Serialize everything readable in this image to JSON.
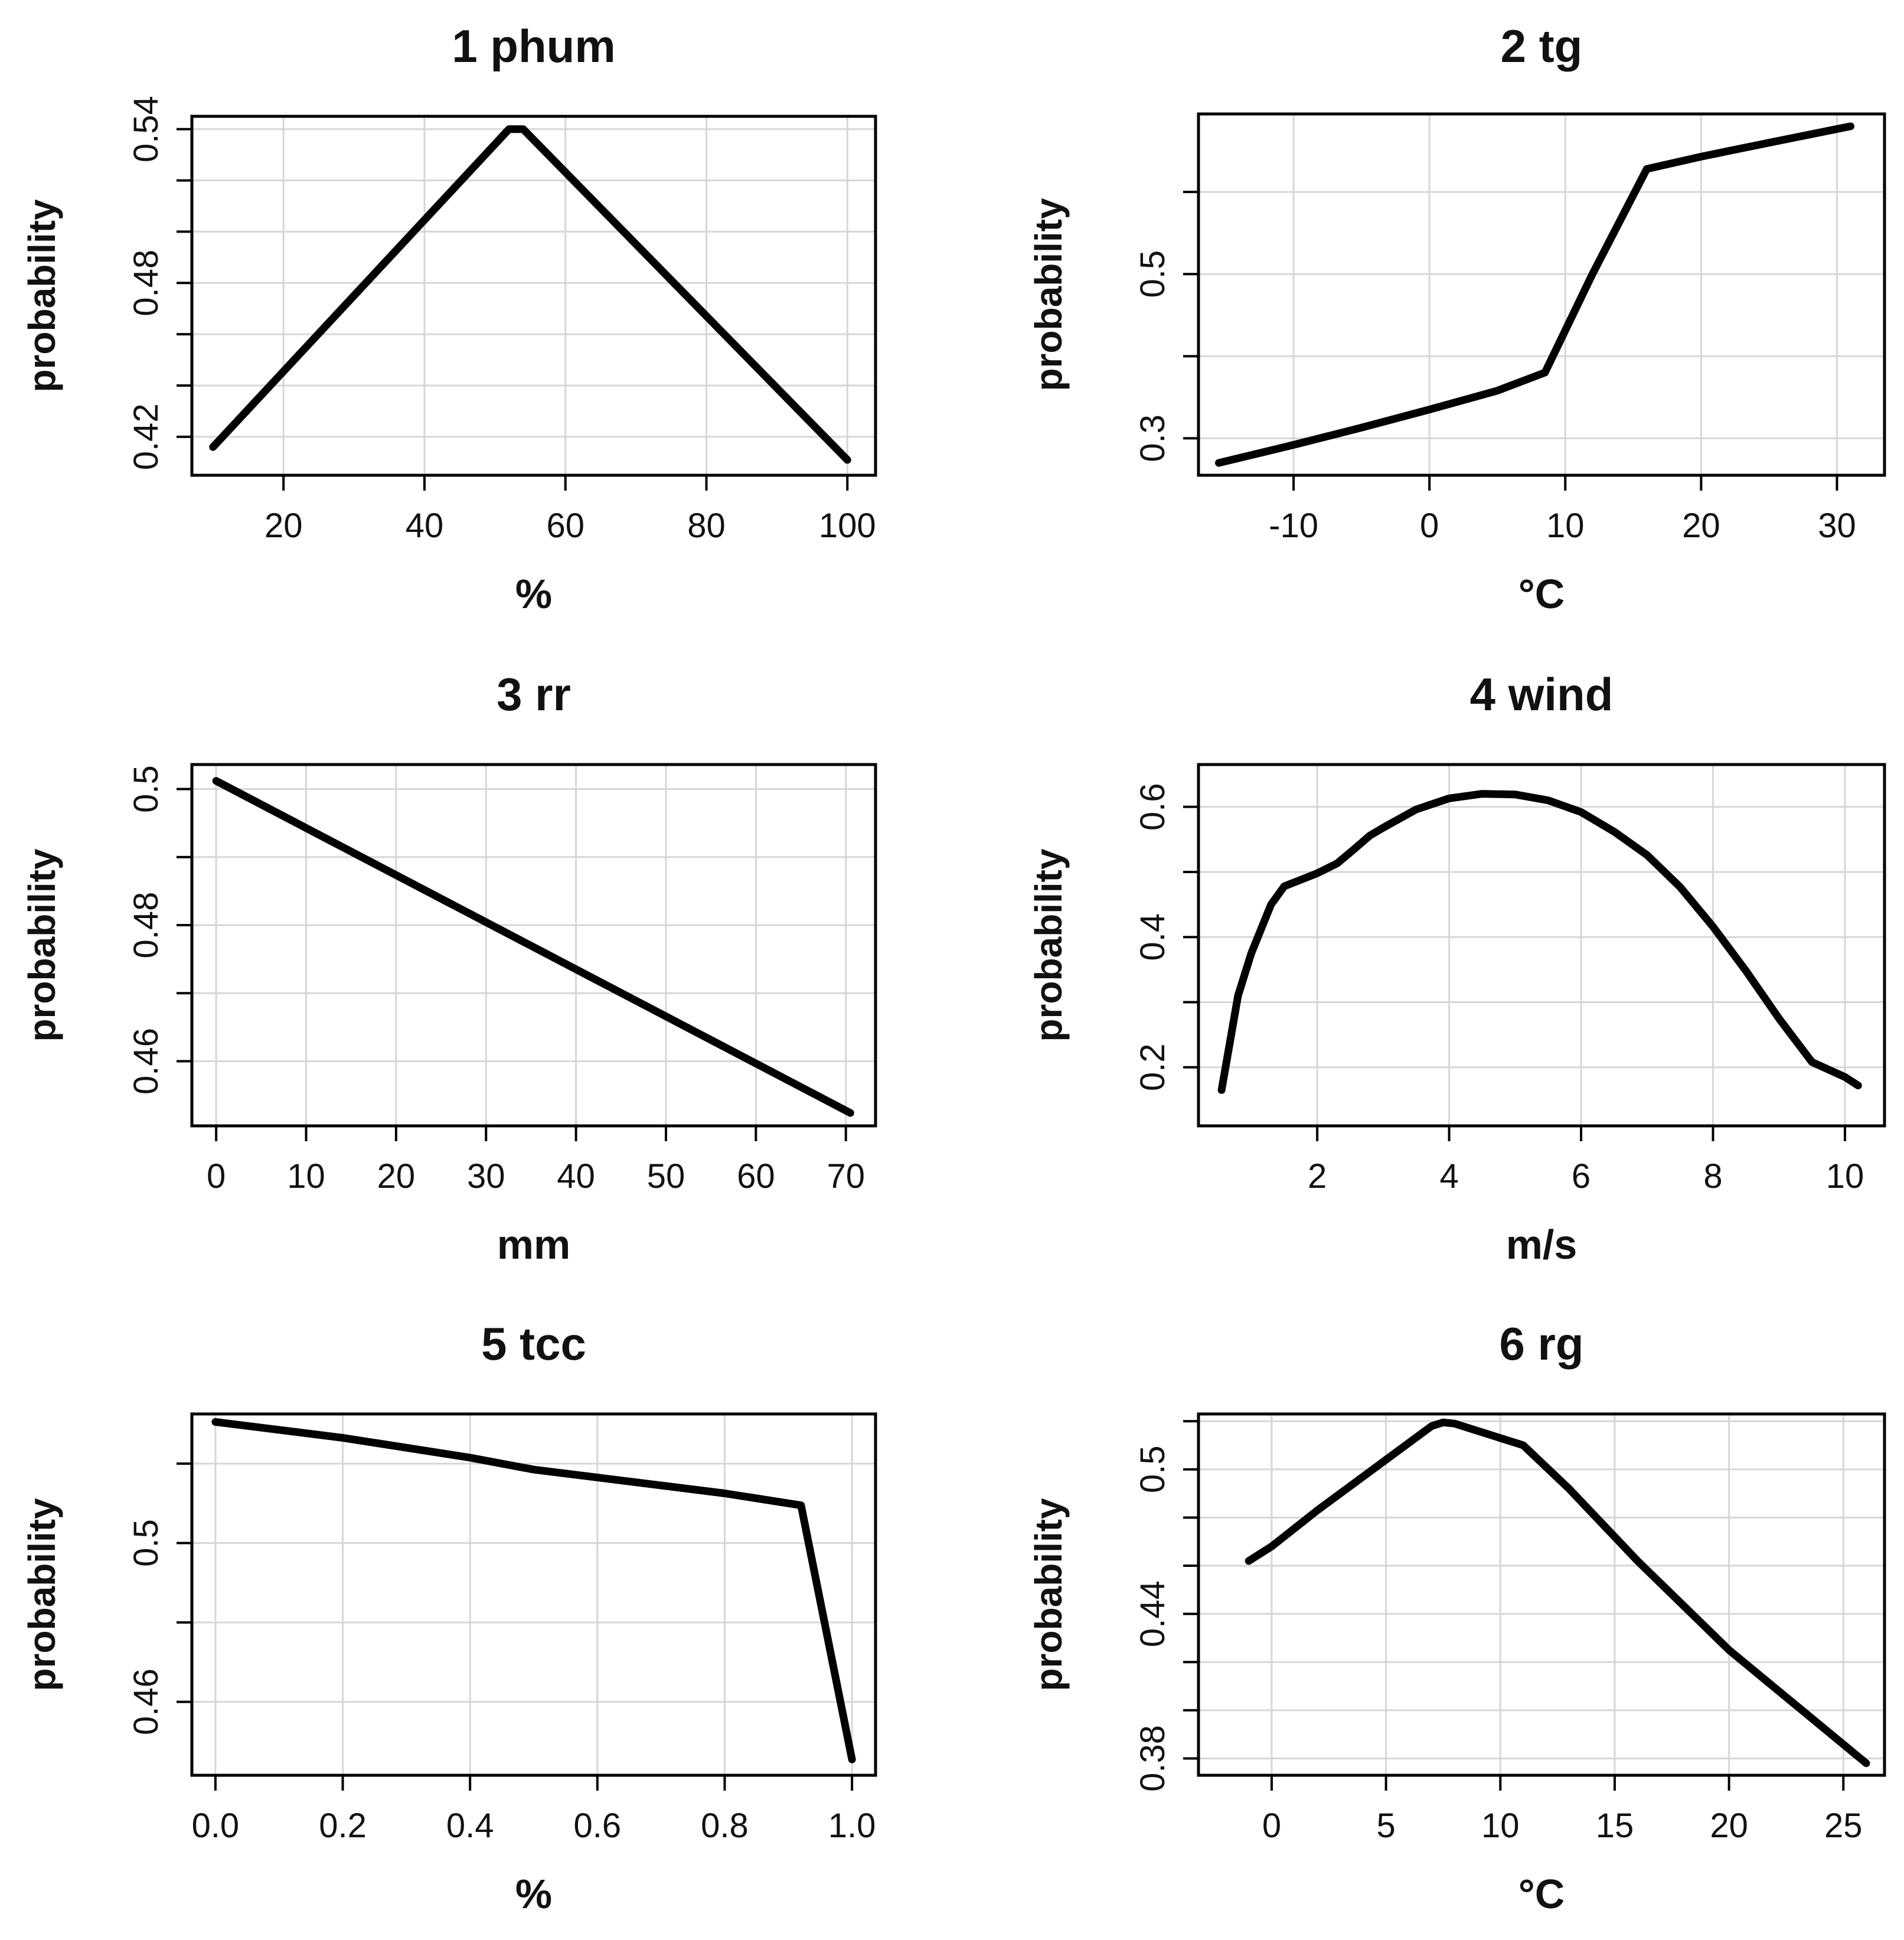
{
  "chart_data": [
    {
      "type": "line",
      "title": "1  phum",
      "xlabel": "%",
      "ylabel": "probability",
      "xlim": [
        7,
        104
      ],
      "ylim": [
        0.405,
        0.545
      ],
      "xticks": [
        20,
        40,
        60,
        80,
        100
      ],
      "yticks": [
        0.42,
        0.48,
        0.54
      ],
      "yminor": [
        0.42,
        0.44,
        0.46,
        0.48,
        0.5,
        0.52,
        0.54
      ],
      "grid": true,
      "x": [
        10,
        52,
        54,
        100
      ],
      "y": [
        0.416,
        0.54,
        0.54,
        0.411
      ]
    },
    {
      "type": "line",
      "title": "2  tg",
      "xlabel": "°C",
      "ylabel": "probability",
      "xlim": [
        -17,
        33.5
      ],
      "ylim": [
        0.255,
        0.695
      ],
      "xticks": [
        -10,
        0,
        10,
        20,
        30
      ],
      "yticks": [
        0.3,
        0.5
      ],
      "yminor": [
        0.3,
        0.4,
        0.5,
        0.6
      ],
      "grid": true,
      "x": [
        -15.5,
        -10,
        -5,
        0,
        5,
        8.5,
        12,
        16,
        20,
        25,
        31
      ],
      "y": [
        0.27,
        0.292,
        0.313,
        0.335,
        0.358,
        0.38,
        0.5,
        0.628,
        0.643,
        0.66,
        0.68
      ]
    },
    {
      "type": "line",
      "title": "3  rr",
      "xlabel": "mm",
      "ylabel": "probability",
      "xlim": [
        -2.7,
        73.3
      ],
      "ylim": [
        0.4505,
        0.5036
      ],
      "xticks": [
        0,
        10,
        20,
        30,
        40,
        50,
        60,
        70
      ],
      "yticks": [
        0.46,
        0.48,
        0.5
      ],
      "yminor": [
        0.46,
        0.47,
        0.48,
        0.49,
        0.5
      ],
      "grid": true,
      "x": [
        0,
        70.5
      ],
      "y": [
        0.5012,
        0.4524
      ]
    },
    {
      "type": "line",
      "title": "4  wind",
      "xlabel": "m/s",
      "ylabel": "probability",
      "xlim": [
        0.2,
        10.6
      ],
      "ylim": [
        0.11,
        0.665
      ],
      "xticks": [
        2,
        4,
        6,
        8,
        10
      ],
      "yticks": [
        0.2,
        0.4,
        0.6
      ],
      "yminor": [
        0.2,
        0.3,
        0.4,
        0.5,
        0.6
      ],
      "grid": true,
      "x": [
        0.55,
        0.8,
        1.0,
        1.3,
        1.5,
        1.8,
        2.0,
        2.3,
        2.5,
        2.8,
        3.0,
        3.5,
        4.0,
        4.5,
        5.0,
        5.5,
        6.0,
        6.5,
        7.0,
        7.5,
        8.0,
        8.5,
        9.0,
        9.5,
        10.0,
        10.2
      ],
      "y": [
        0.165,
        0.31,
        0.375,
        0.45,
        0.478,
        0.49,
        0.498,
        0.513,
        0.53,
        0.556,
        0.568,
        0.596,
        0.613,
        0.62,
        0.619,
        0.61,
        0.592,
        0.562,
        0.526,
        0.477,
        0.416,
        0.348,
        0.275,
        0.208,
        0.185,
        0.172
      ]
    },
    {
      "type": "line",
      "title": "5  tcc",
      "xlabel": "%",
      "ylabel": "probability",
      "xlim": [
        -0.037,
        1.037
      ],
      "ylim": [
        0.4415,
        0.5325
      ],
      "xticks": [
        0.0,
        0.2,
        0.4,
        0.6,
        0.8,
        1.0
      ],
      "xtick_labels": [
        "0.0",
        "0.2",
        "0.4",
        "0.6",
        "0.8",
        "1.0"
      ],
      "yticks": [
        0.46,
        0.5
      ],
      "yminor": [
        0.46,
        0.48,
        0.5,
        0.52
      ],
      "grid": true,
      "x": [
        0.0,
        0.2,
        0.4,
        0.5,
        0.6,
        0.8,
        0.92,
        1.0
      ],
      "y": [
        0.5305,
        0.5265,
        0.5215,
        0.5185,
        0.5165,
        0.5125,
        0.5095,
        0.4455
      ]
    },
    {
      "type": "line",
      "title": "6  rg",
      "xlabel": "°C",
      "ylabel": "probability",
      "xlim": [
        -3.2,
        26.8
      ],
      "ylim": [
        0.373,
        0.523
      ],
      "xticks": [
        0,
        5,
        10,
        15,
        20,
        25
      ],
      "yticks": [
        0.38,
        0.44,
        0.5
      ],
      "yminor": [
        0.38,
        0.4,
        0.42,
        0.44,
        0.46,
        0.48,
        0.5,
        0.52
      ],
      "grid": true,
      "x": [
        -1,
        0,
        2,
        5,
        7,
        7.5,
        8,
        9,
        11,
        13,
        16,
        20,
        26
      ],
      "y": [
        0.462,
        0.468,
        0.483,
        0.504,
        0.518,
        0.5195,
        0.519,
        0.516,
        0.51,
        0.492,
        0.462,
        0.425,
        0.378
      ]
    }
  ]
}
